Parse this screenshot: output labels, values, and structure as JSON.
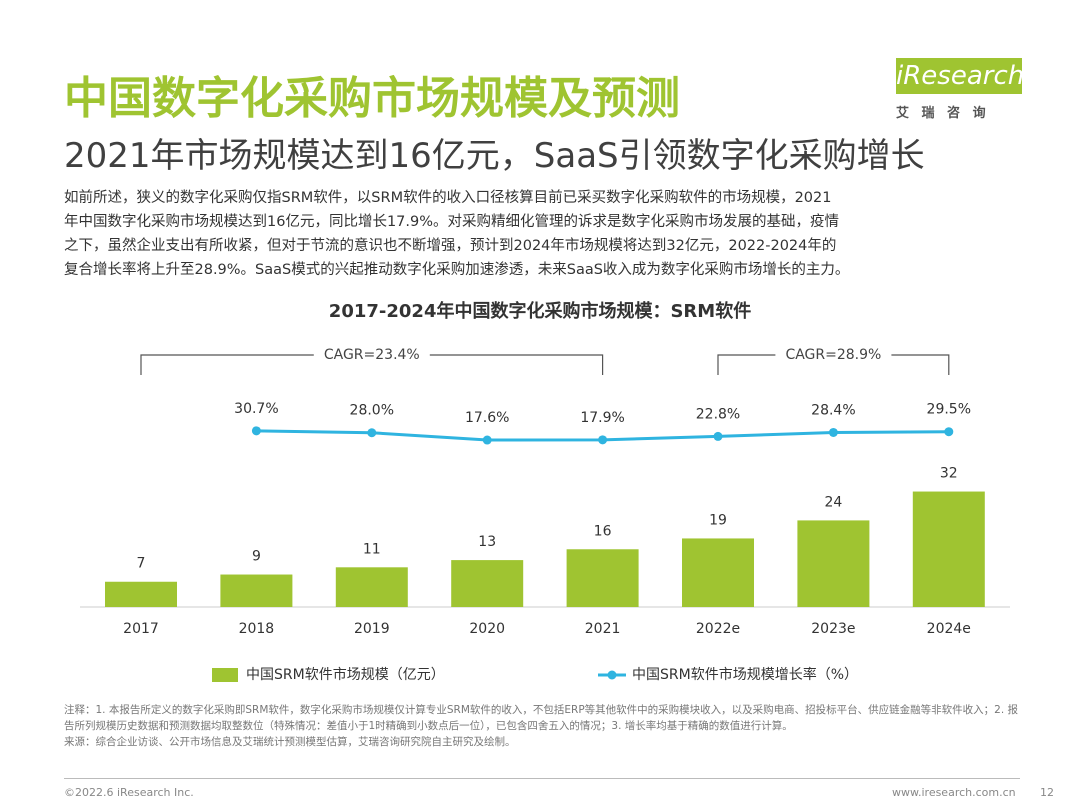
{
  "header": {
    "title": "中国数字化采购市场规模及预测",
    "subtitle": "2021年市场规模达到16亿元，SaaS引领数字化采购增长",
    "logo": "iResearch",
    "logo_cn": "艾 瑞 咨 询"
  },
  "paragraph": [
    "如前所述，狭义的数字化采购仅指SRM软件，以SRM软件的收入口径核算目前已采买数字化采购软件的市场规模，2021",
    "年中国数字化采购市场规模达到16亿元，同比增长17.9%。对采购精细化管理的诉求是数字化采购市场发展的基础，疫情",
    "之下，虽然企业支出有所收紧，但对于节流的意识也不断增强，预计到2024年市场规模将达到32亿元，2022-2024年的",
    "复合增长率将上升至28.9%。SaaS模式的兴起推动数字化采购加速渗透，未来SaaS收入成为数字化采购市场增长的主力。"
  ],
  "chart_data": {
    "type": "bar",
    "title": "2017-2024年中国数字化采购市场规模：SRM软件",
    "categories": [
      "2017",
      "2018",
      "2019",
      "2020",
      "2021",
      "2022e",
      "2023e",
      "2024e"
    ],
    "series": [
      {
        "name": "中国SRM软件市场规模（亿元）",
        "color": "#9fc431",
        "values": [
          7,
          9,
          11,
          13,
          16,
          19,
          24,
          32
        ]
      },
      {
        "name": "中国SRM软件市场规模增长率（%）",
        "type": "line",
        "axis": "y2",
        "color": "#2fb4e0",
        "values": [
          null,
          30.7,
          28.0,
          17.6,
          17.9,
          22.8,
          28.4,
          29.5
        ],
        "value_labels": [
          null,
          "30.7%",
          "28.0%",
          "17.6%",
          "17.9%",
          "22.8%",
          "28.4%",
          "29.5%"
        ]
      }
    ],
    "ylim": [
      0,
      74
    ],
    "y2lim": [
      -220,
      160
    ],
    "annotations": [
      {
        "text": "CAGR=23.4%",
        "from": "2017",
        "to": "2021"
      },
      {
        "text": "CAGR=28.9%",
        "from": "2022e",
        "to": "2024e"
      }
    ]
  },
  "notes": [
    "注释：1. 本报告所定义的数字化采购即SRM软件，数字化采购市场规模仅计算专业SRM软件的收入，不包括ERP等其他软件中的采购模块收入，以及采购电商、招投标平台、供应链金融等非软件收入；2. 报告所列规模历史数据和预测数据均取整数位（特殊情况：差值小于1时精确到小数点后一位），已包含四舍五入的情况；3. 增长率均基于精确的数值进行计算。",
    "来源：综合企业访谈、公开市场信息及艾瑞统计预测模型估算，艾瑞咨询研究院自主研究及绘制。"
  ],
  "footer": {
    "copyright": "©2022.6 iResearch Inc.",
    "website": "www.iresearch.com.cn",
    "page": "12"
  }
}
